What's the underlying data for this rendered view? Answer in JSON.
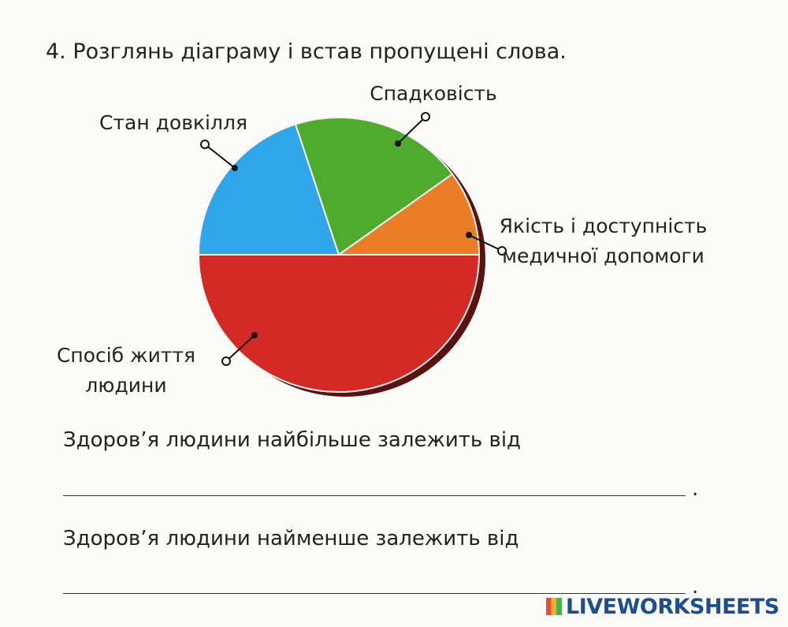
{
  "heading": "4. Розглянь діаграму і встав пропущені слова.",
  "chart_data": {
    "type": "pie",
    "categories": [
      "Спосіб життя людини",
      "Стан довкілля",
      "Спадковість",
      "Якість і доступність медичної допомоги"
    ],
    "values": [
      50,
      20,
      20,
      10
    ],
    "colors": [
      "#d42a26",
      "#2fa6ea",
      "#4eab2d",
      "#ea7d26"
    ]
  },
  "sentences": [
    {
      "text": "Здоров’я людини найбільше залежить від",
      "end": "."
    },
    {
      "text": "Здоров’я людини найменше залежить від",
      "end": "."
    }
  ],
  "logo": "LIVEWORKSHEETS"
}
